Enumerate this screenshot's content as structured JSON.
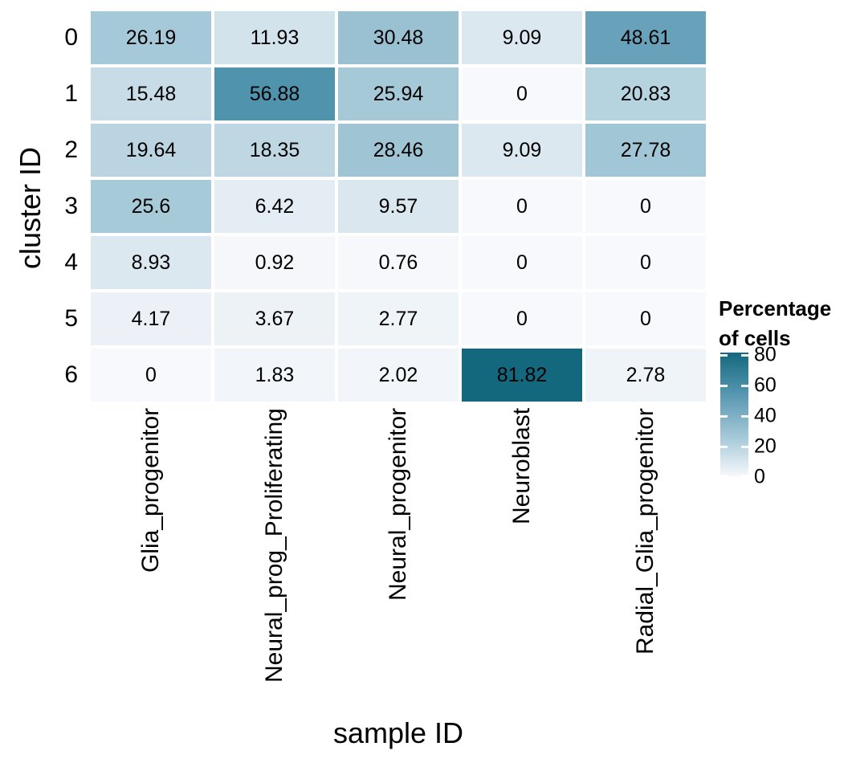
{
  "figure": {
    "background": "#ffffff",
    "text_color": "#000000"
  },
  "chart_data": {
    "type": "heatmap",
    "title": "",
    "xlabel": "sample ID",
    "ylabel": "cluster ID",
    "x_categories": [
      "Glia_progenitor",
      "Neural_prog_Proliferating",
      "Neural_progenitor",
      "Neuroblast",
      "Radial_Glia_progenitor"
    ],
    "y_categories": [
      "0",
      "1",
      "2",
      "3",
      "4",
      "5",
      "6"
    ],
    "values": [
      [
        26.19,
        11.93,
        30.48,
        9.09,
        48.61
      ],
      [
        15.48,
        56.88,
        25.94,
        0,
        20.83
      ],
      [
        19.64,
        18.35,
        28.46,
        9.09,
        27.78
      ],
      [
        25.6,
        6.42,
        9.57,
        0,
        0
      ],
      [
        8.93,
        0.92,
        0.76,
        0,
        0
      ],
      [
        4.17,
        3.67,
        2.77,
        0,
        0
      ],
      [
        0,
        1.83,
        2.02,
        81.82,
        2.78
      ]
    ],
    "value_range": [
      0,
      81.82
    ],
    "grid_lines": false,
    "legend": {
      "position": "right",
      "title_lines": [
        "Percentage",
        "of cells"
      ],
      "ticks": [
        {
          "label": "80",
          "value": 80
        },
        {
          "label": "60",
          "value": 60
        },
        {
          "label": "40",
          "value": 40
        },
        {
          "label": "20",
          "value": 20
        },
        {
          "label": "0",
          "value": 0
        }
      ]
    },
    "color_scale": {
      "low": "#f8f9fc",
      "high": "#14687e",
      "stops": [
        {
          "value": 0,
          "color": "#f8f9fc"
        },
        {
          "value": 9.09,
          "color": "#dce8f0"
        },
        {
          "value": 26.19,
          "color": "#a5c9d8"
        },
        {
          "value": 48.61,
          "color": "#68a1ba"
        },
        {
          "value": 56.88,
          "color": "#4f93ad"
        },
        {
          "value": 81.82,
          "color": "#14687e"
        }
      ]
    }
  }
}
